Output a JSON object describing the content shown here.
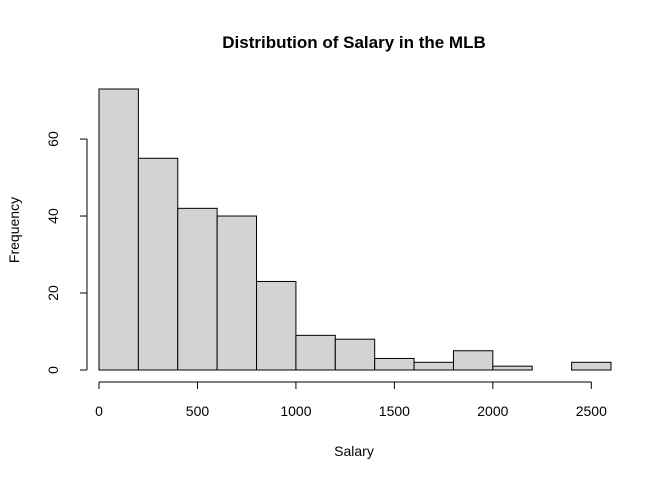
{
  "chart_data": {
    "type": "bar",
    "title": "Distribution of Salary in the MLB",
    "xlabel": "Salary",
    "ylabel": "Frequency",
    "bins": [
      {
        "start": 0,
        "end": 200,
        "count": 73
      },
      {
        "start": 200,
        "end": 400,
        "count": 55
      },
      {
        "start": 400,
        "end": 600,
        "count": 42
      },
      {
        "start": 600,
        "end": 800,
        "count": 40
      },
      {
        "start": 800,
        "end": 1000,
        "count": 23
      },
      {
        "start": 1000,
        "end": 1200,
        "count": 9
      },
      {
        "start": 1200,
        "end": 1400,
        "count": 8
      },
      {
        "start": 1400,
        "end": 1600,
        "count": 3
      },
      {
        "start": 1600,
        "end": 1800,
        "count": 2
      },
      {
        "start": 1800,
        "end": 2000,
        "count": 5
      },
      {
        "start": 2000,
        "end": 2200,
        "count": 1
      },
      {
        "start": 2200,
        "end": 2400,
        "count": 0
      },
      {
        "start": 2400,
        "end": 2600,
        "count": 2
      }
    ],
    "xticks": [
      0,
      500,
      1000,
      1500,
      2000,
      2500
    ],
    "yticks": [
      0,
      20,
      40,
      60
    ],
    "xlim": [
      0,
      2600
    ],
    "ylim": [
      0,
      73
    ],
    "grid": false,
    "bar_fill": "#d3d3d3",
    "bar_stroke": "#000000"
  }
}
